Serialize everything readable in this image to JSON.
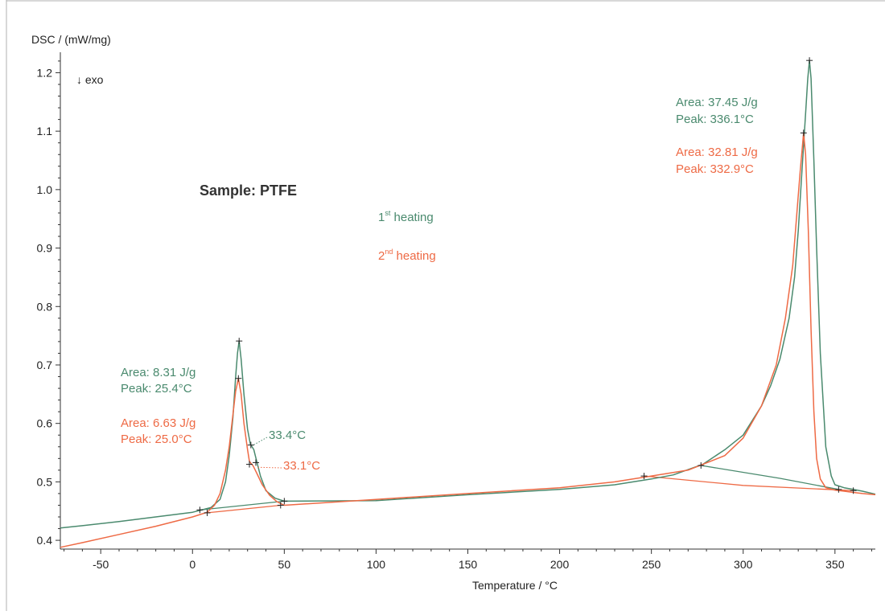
{
  "chart_data": {
    "type": "line",
    "title": "",
    "ylabel": "DSC / (mW/mg)",
    "xlabel": "Temperature / °C",
    "exo_label": "↓ exo",
    "sample_label": "Sample: PTFE",
    "xlim": [
      -72,
      372
    ],
    "ylim": [
      0.385,
      1.235
    ],
    "x_ticks": [
      -50,
      0,
      50,
      100,
      150,
      200,
      250,
      300,
      350
    ],
    "y_ticks": [
      0.4,
      0.5,
      0.6,
      0.7,
      0.8,
      0.9,
      1.0,
      1.1,
      1.2
    ],
    "grid": false,
    "legend": [
      {
        "series": 0,
        "lead": "1",
        "sup": "st",
        "tail": " heating"
      },
      {
        "series": 1,
        "lead": "2",
        "sup": "nd",
        "tail": " heating"
      }
    ],
    "series": [
      {
        "color": "#4a8a6e",
        "x": [
          -72,
          -60,
          -40,
          -20,
          0,
          5,
          10,
          15,
          18,
          20,
          22,
          23.5,
          24.5,
          25.4,
          26.5,
          28,
          30,
          31.5,
          33.4,
          35,
          37,
          40,
          45,
          50,
          100,
          150,
          200,
          230,
          250,
          262,
          278,
          290,
          300,
          310,
          315,
          320,
          325,
          328,
          330,
          332,
          334,
          335.2,
          336.1,
          337,
          338.5,
          340,
          342,
          345,
          348,
          350,
          355,
          360,
          365,
          372
        ],
        "y": [
          0.421,
          0.425,
          0.432,
          0.44,
          0.448,
          0.452,
          0.456,
          0.47,
          0.5,
          0.545,
          0.61,
          0.68,
          0.72,
          0.741,
          0.71,
          0.65,
          0.59,
          0.565,
          0.555,
          0.535,
          0.51,
          0.485,
          0.472,
          0.467,
          0.468,
          0.478,
          0.487,
          0.495,
          0.505,
          0.512,
          0.53,
          0.555,
          0.58,
          0.63,
          0.665,
          0.71,
          0.78,
          0.85,
          0.93,
          1.03,
          1.13,
          1.19,
          1.221,
          1.19,
          1.05,
          0.9,
          0.72,
          0.56,
          0.51,
          0.495,
          0.49,
          0.487,
          0.484,
          0.479
        ]
      },
      {
        "color": "#ee6a45",
        "x": [
          -72,
          -60,
          -40,
          -20,
          0,
          5,
          8,
          12,
          15,
          18,
          20,
          22,
          23.5,
          25.0,
          26.5,
          28,
          30,
          31,
          33.1,
          35,
          38,
          42,
          46,
          50,
          100,
          150,
          200,
          230,
          250,
          270,
          290,
          300,
          310,
          318,
          323,
          327,
          329,
          331,
          332.9,
          334,
          335.5,
          337,
          338.5,
          340,
          342,
          345,
          350,
          355,
          360,
          365,
          372
        ],
        "y": [
          0.388,
          0.396,
          0.41,
          0.424,
          0.44,
          0.445,
          0.448,
          0.46,
          0.48,
          0.52,
          0.56,
          0.615,
          0.655,
          0.677,
          0.65,
          0.6,
          0.555,
          0.535,
          0.527,
          0.515,
          0.495,
          0.477,
          0.466,
          0.46,
          0.47,
          0.48,
          0.49,
          0.5,
          0.51,
          0.52,
          0.545,
          0.575,
          0.63,
          0.7,
          0.78,
          0.87,
          0.95,
          1.03,
          1.097,
          1.06,
          0.93,
          0.76,
          0.62,
          0.54,
          0.505,
          0.49,
          0.486,
          0.484,
          0.482,
          0.48,
          0.478
        ]
      }
    ],
    "baselines": [
      {
        "series": 0,
        "points": [
          [
            4,
            0.452
          ],
          [
            50,
            0.467
          ]
        ]
      },
      {
        "series": 1,
        "points": [
          [
            8,
            0.447
          ],
          [
            48,
            0.46
          ]
        ]
      },
      {
        "series": 0,
        "points": [
          [
            277,
            0.528
          ],
          [
            320,
            0.506
          ],
          [
            352,
            0.487
          ]
        ]
      },
      {
        "series": 1,
        "points": [
          [
            246,
            0.51
          ],
          [
            300,
            0.494
          ],
          [
            360,
            0.485
          ]
        ]
      }
    ],
    "markers": [
      {
        "series": 0,
        "points": [
          [
            4,
            0.452
          ],
          [
            25.4,
            0.741
          ],
          [
            31.8,
            0.563
          ],
          [
            50,
            0.467
          ],
          [
            246,
            0.51
          ],
          [
            277,
            0.528
          ],
          [
            336.1,
            1.221
          ],
          [
            352,
            0.487
          ],
          [
            360,
            0.485
          ]
        ]
      },
      {
        "series": 1,
        "points": [
          [
            8,
            0.447
          ],
          [
            25.0,
            0.677
          ],
          [
            31.0,
            0.53
          ],
          [
            34.5,
            0.533
          ],
          [
            48,
            0.46
          ],
          [
            332.9,
            1.097
          ]
        ]
      }
    ],
    "annotations": [
      {
        "series": 0,
        "area_text": "Area:  8.31 J/g",
        "peak_text": "Peak:  25.4°C"
      },
      {
        "series": 1,
        "area_text": "Area:  6.63 J/g",
        "peak_text": "Peak:  25.0°C"
      },
      {
        "series": 0,
        "area_text": "Area:  37.45 J/g",
        "peak_text": "Peak:  336.1°C"
      },
      {
        "series": 1,
        "area_text": "Area:  32.81 J/g",
        "peak_text": "Peak:  332.9°C"
      }
    ],
    "onset_labels": [
      {
        "series": 0,
        "text": "33.4°C",
        "target": [
          32.6,
          0.562
        ]
      },
      {
        "series": 1,
        "text": "33.1°C",
        "target": [
          35.0,
          0.525
        ]
      }
    ]
  }
}
